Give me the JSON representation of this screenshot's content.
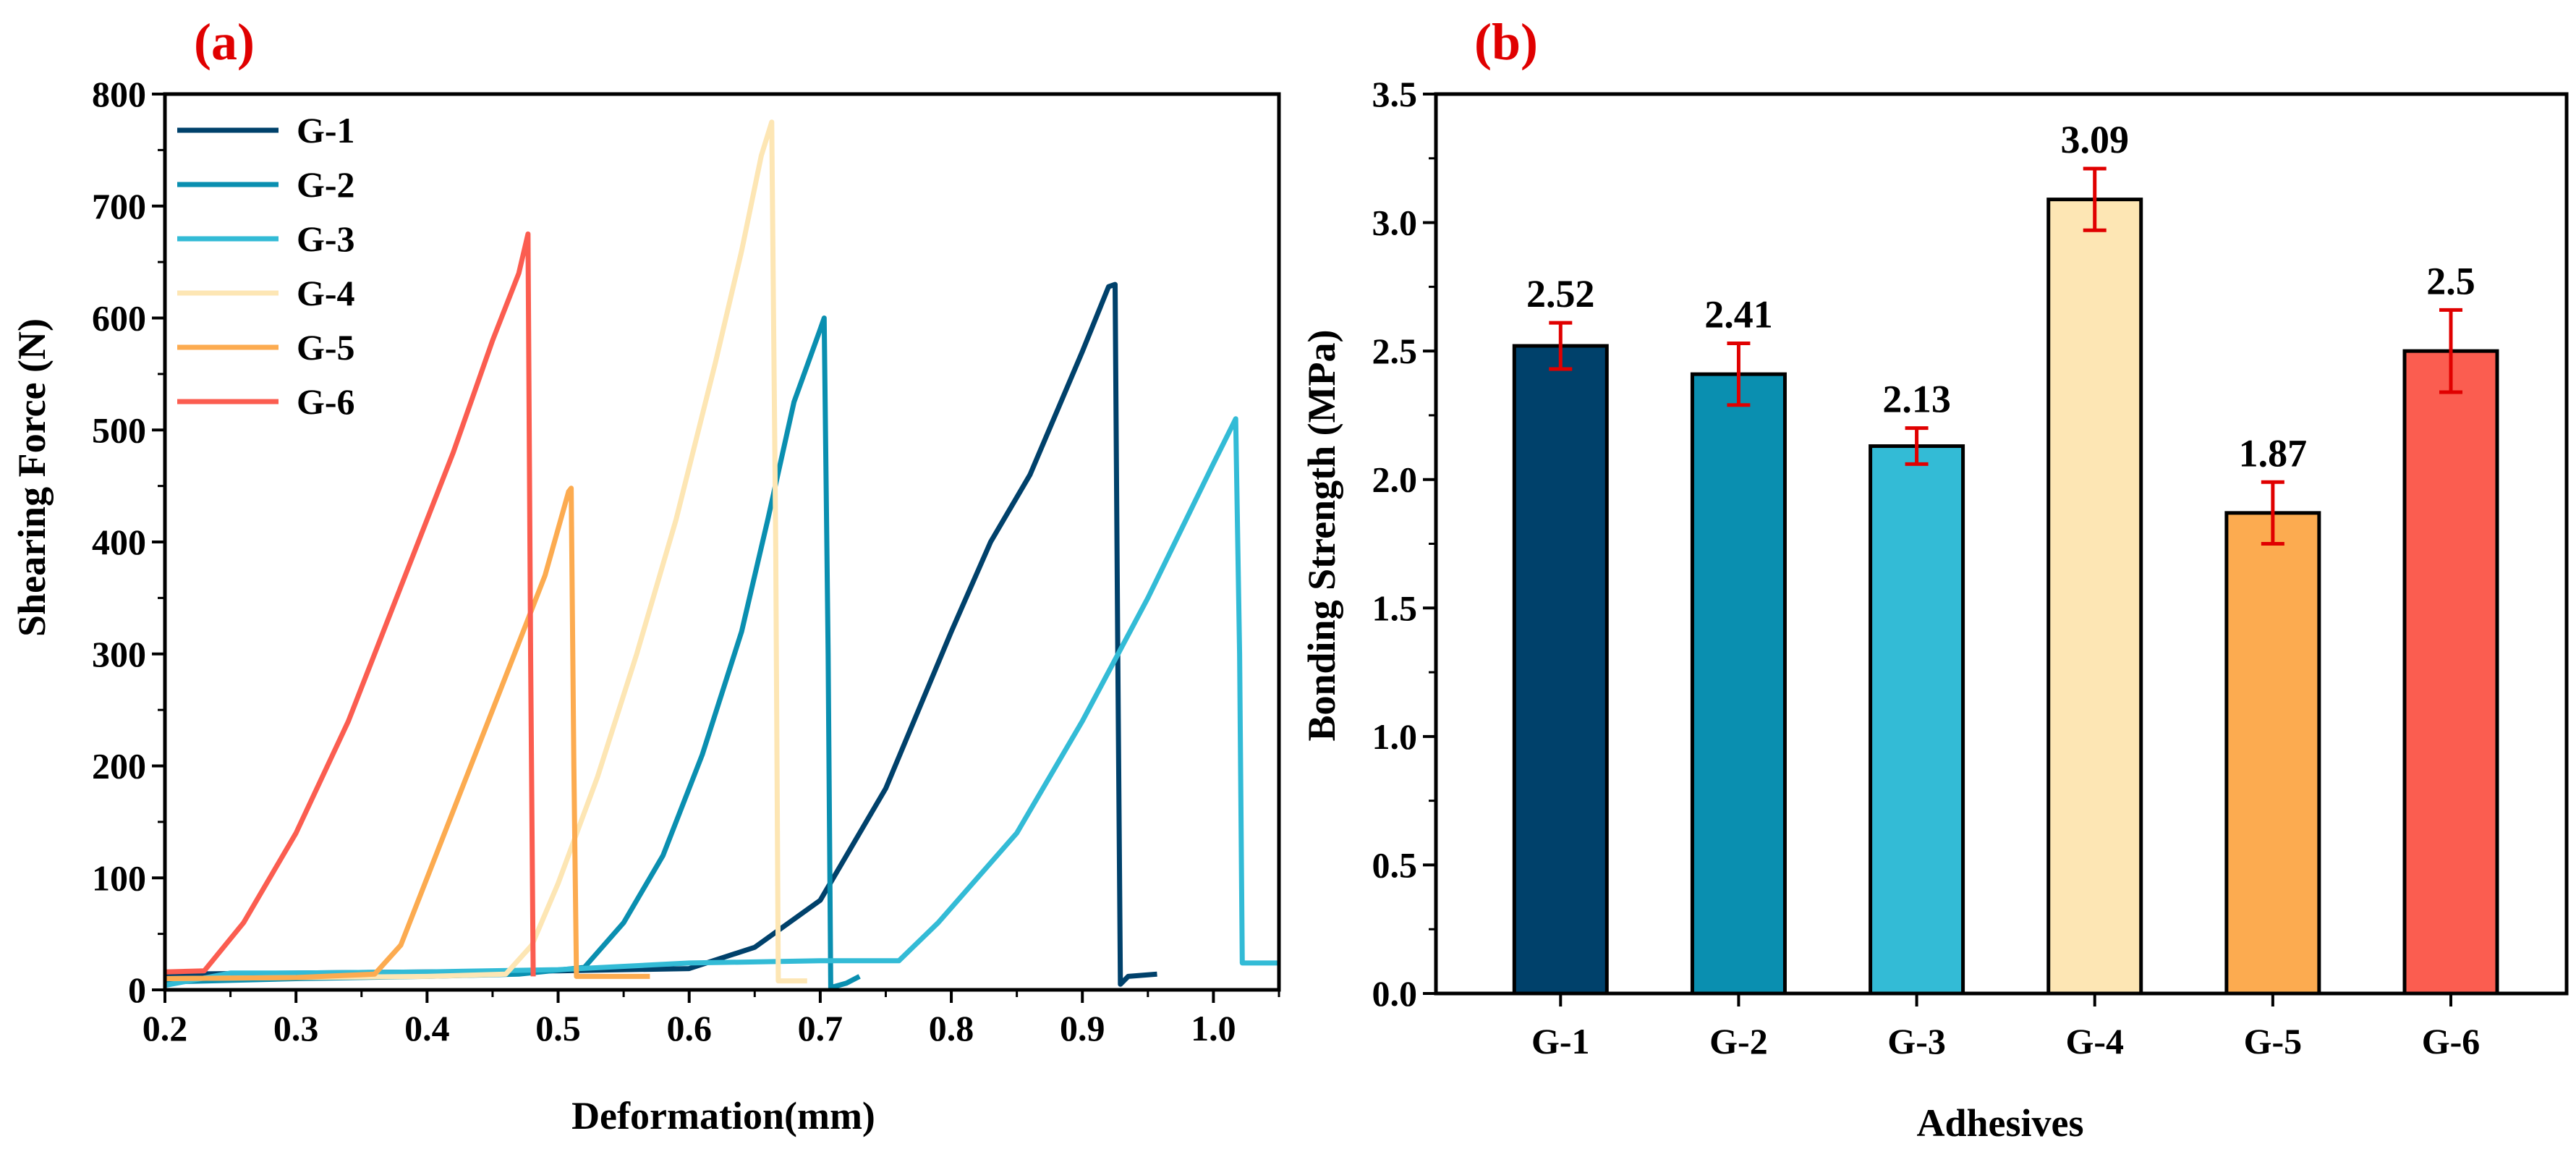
{
  "colors": {
    "G-1": "#00416b",
    "G-2": "#0a8fb0",
    "G-3": "#33bbd6",
    "G-4": "#fde6b4",
    "G-5": "#fcab50",
    "G-6": "#fb5d50",
    "error_bar": "#e00000"
  },
  "chart_data": [
    {
      "panel": "(a)",
      "type": "line",
      "title": "",
      "xlabel": "Deformation(mm)",
      "ylabel": "Shearing Force (N)",
      "xlim": [
        0.2,
        1.05
      ],
      "ylim": [
        0,
        800
      ],
      "xticks": [
        "0.2",
        "0.3",
        "0.4",
        "0.5",
        "0.6",
        "0.7",
        "0.8",
        "0.9",
        "1.0"
      ],
      "yticks": [
        "0",
        "100",
        "200",
        "300",
        "400",
        "500",
        "600",
        "700",
        "800"
      ],
      "legend_position": "top-left",
      "series": [
        {
          "name": "G-1",
          "points": [
            [
              0.2,
              14
            ],
            [
              0.3,
              15
            ],
            [
              0.4,
              16
            ],
            [
              0.5,
              17
            ],
            [
              0.6,
              19
            ],
            [
              0.65,
              38
            ],
            [
              0.7,
              80
            ],
            [
              0.75,
              180
            ],
            [
              0.8,
              320
            ],
            [
              0.83,
              400
            ],
            [
              0.86,
              460
            ],
            [
              0.9,
              570
            ],
            [
              0.92,
              628
            ],
            [
              0.925,
              630
            ],
            [
              0.927,
              300
            ],
            [
              0.929,
              5
            ],
            [
              0.935,
              12
            ],
            [
              0.957,
              14
            ]
          ]
        },
        {
          "name": "G-2",
          "points": [
            [
              0.2,
              7
            ],
            [
              0.3,
              10
            ],
            [
              0.4,
              12
            ],
            [
              0.47,
              14
            ],
            [
              0.52,
              20
            ],
            [
              0.55,
              60
            ],
            [
              0.58,
              120
            ],
            [
              0.61,
              210
            ],
            [
              0.64,
              320
            ],
            [
              0.66,
              420
            ],
            [
              0.68,
              525
            ],
            [
              0.7,
              590
            ],
            [
              0.703,
              600
            ],
            [
              0.706,
              300
            ],
            [
              0.708,
              2
            ],
            [
              0.72,
              6
            ],
            [
              0.73,
              12
            ]
          ]
        },
        {
          "name": "G-3",
          "points": [
            [
              0.2,
              4
            ],
            [
              0.25,
              15
            ],
            [
              0.3,
              15
            ],
            [
              0.4,
              16
            ],
            [
              0.5,
              18
            ],
            [
              0.6,
              24
            ],
            [
              0.7,
              26
            ],
            [
              0.76,
              26
            ],
            [
              0.79,
              60
            ],
            [
              0.85,
              140
            ],
            [
              0.9,
              240
            ],
            [
              0.95,
              350
            ],
            [
              1.0,
              470
            ],
            [
              1.017,
              510
            ],
            [
              1.02,
              300
            ],
            [
              1.022,
              24
            ],
            [
              1.05,
              24
            ]
          ]
        },
        {
          "name": "G-4",
          "points": [
            [
              0.2,
              10
            ],
            [
              0.3,
              11
            ],
            [
              0.4,
              12
            ],
            [
              0.46,
              14
            ],
            [
              0.48,
              40
            ],
            [
              0.5,
              95
            ],
            [
              0.53,
              190
            ],
            [
              0.56,
              300
            ],
            [
              0.59,
              420
            ],
            [
              0.62,
              560
            ],
            [
              0.64,
              660
            ],
            [
              0.655,
              745
            ],
            [
              0.663,
              775
            ],
            [
              0.666,
              400
            ],
            [
              0.668,
              8
            ],
            [
              0.69,
              8
            ]
          ]
        },
        {
          "name": "G-5",
          "points": [
            [
              0.2,
              10
            ],
            [
              0.3,
              11
            ],
            [
              0.36,
              14
            ],
            [
              0.38,
              40
            ],
            [
              0.4,
              100
            ],
            [
              0.43,
              190
            ],
            [
              0.46,
              280
            ],
            [
              0.49,
              370
            ],
            [
              0.508,
              445
            ],
            [
              0.51,
              448
            ],
            [
              0.512,
              200
            ],
            [
              0.514,
              12
            ],
            [
              0.57,
              12
            ]
          ]
        },
        {
          "name": "G-6",
          "points": [
            [
              0.2,
              16
            ],
            [
              0.23,
              17
            ],
            [
              0.26,
              60
            ],
            [
              0.3,
              140
            ],
            [
              0.34,
              240
            ],
            [
              0.38,
              360
            ],
            [
              0.42,
              480
            ],
            [
              0.45,
              580
            ],
            [
              0.47,
              640
            ],
            [
              0.477,
              675
            ],
            [
              0.479,
              300
            ],
            [
              0.481,
              12
            ]
          ]
        }
      ]
    },
    {
      "panel": "(b)",
      "type": "bar",
      "title": "",
      "xlabel": "Adhesives",
      "ylabel": "Bonding Strength (MPa)",
      "ylim": [
        0,
        3.5
      ],
      "yticks": [
        "0.0",
        "0.5",
        "1.0",
        "1.5",
        "2.0",
        "2.5",
        "3.0",
        "3.5"
      ],
      "categories": [
        "G-1",
        "G-2",
        "G-3",
        "G-4",
        "G-5",
        "G-6"
      ],
      "values": [
        2.52,
        2.41,
        2.13,
        3.09,
        1.87,
        2.5
      ],
      "errors": [
        0.09,
        0.12,
        0.07,
        0.12,
        0.12,
        0.16
      ],
      "value_labels": [
        "2.52",
        "2.41",
        "2.13",
        "3.09",
        "1.87",
        "2.5"
      ]
    }
  ]
}
